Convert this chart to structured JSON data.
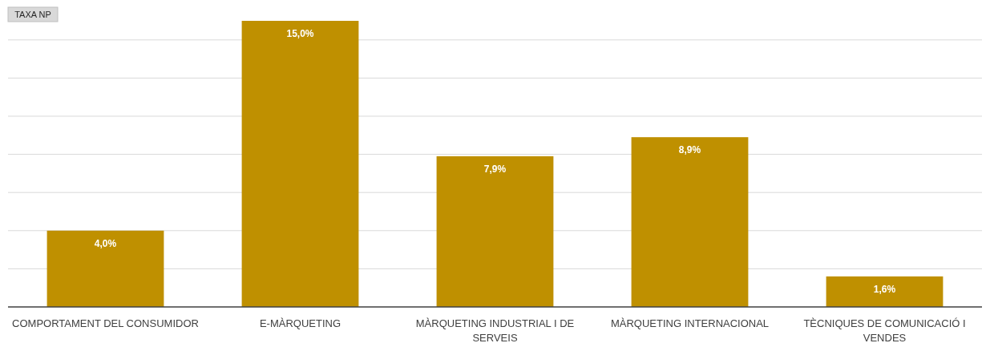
{
  "chart_data": {
    "type": "bar",
    "ylabel": "TAXA NP",
    "categories": [
      "COMPORTAMENT DEL CONSUMIDOR",
      "E-MÀRQUETING",
      "MÀRQUETING INDUSTRIAL I DE SERVEIS",
      "MÀRQUETING INTERNACIONAL",
      "TÈCNIQUES DE COMUNICACIÓ I VENDES"
    ],
    "values": [
      4.0,
      15.0,
      7.9,
      8.9,
      1.6
    ],
    "value_labels": [
      "4,0%",
      "15,0%",
      "7,9%",
      "8,9%",
      "1,6%"
    ],
    "color": "#bf9000",
    "yticks": [
      {
        "value": 2,
        "label": null
      },
      {
        "value": 4,
        "label": null
      },
      {
        "value": 6,
        "label": null
      },
      {
        "value": 8,
        "label": null
      },
      {
        "value": 10,
        "label": null
      },
      {
        "value": 12,
        "label": null
      },
      {
        "value": 14,
        "label": null
      }
    ],
    "grid": "y",
    "tick_labels": "x"
  }
}
